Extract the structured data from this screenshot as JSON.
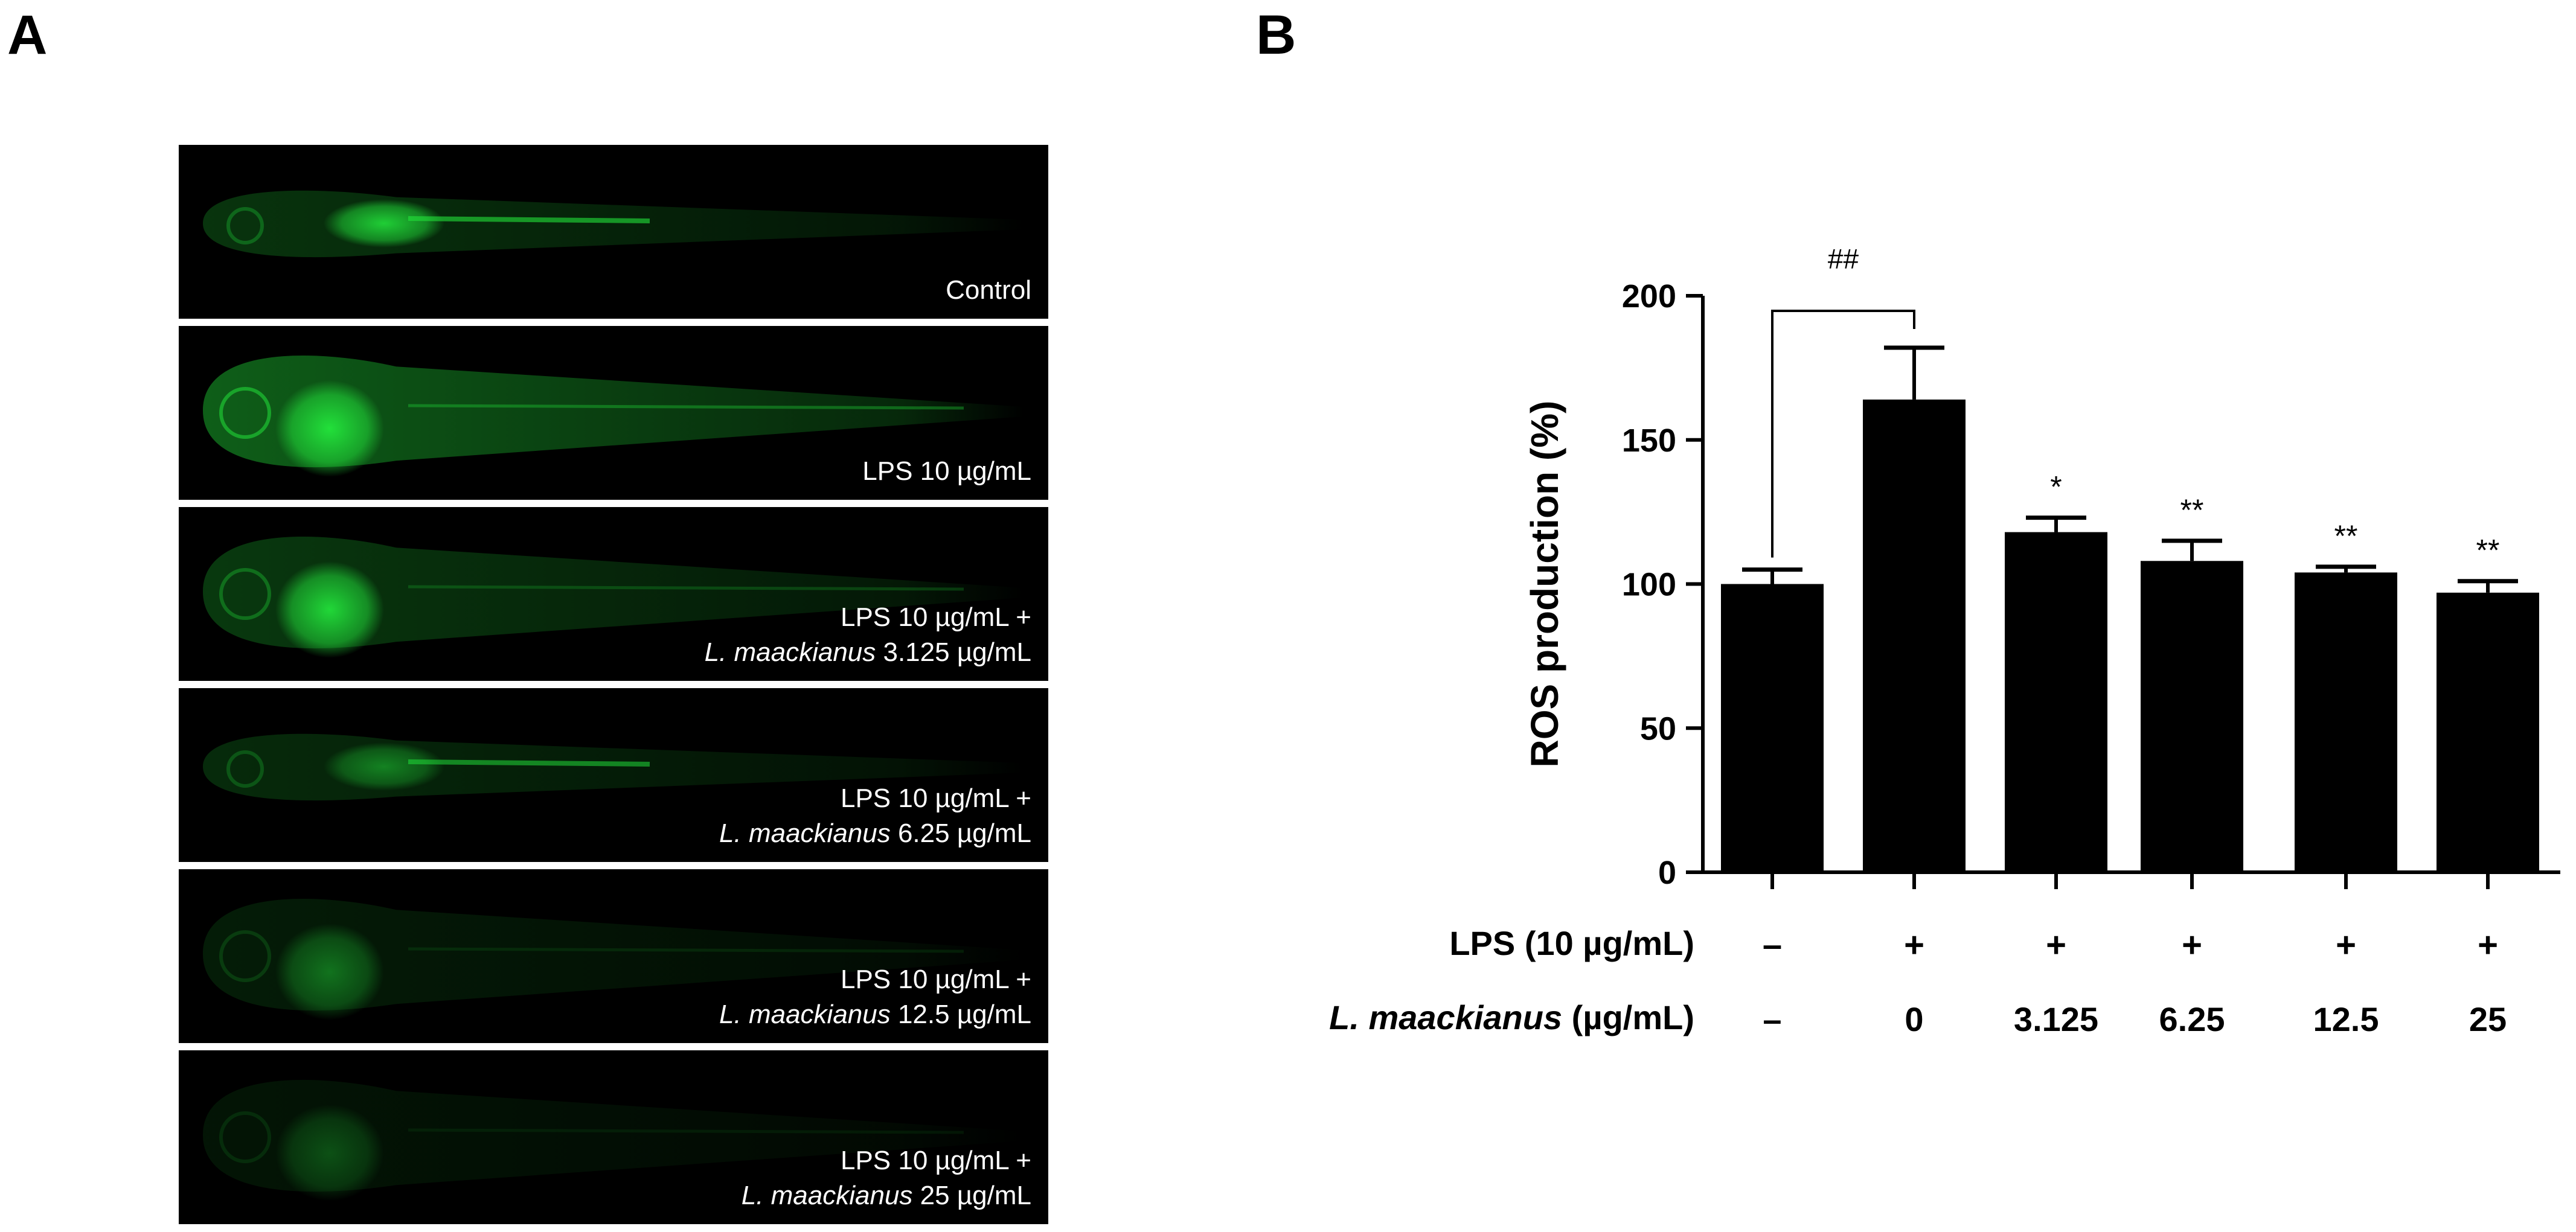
{
  "panel_a": {
    "letter": "A",
    "images": [
      {
        "line1": "Control",
        "italic": "",
        "line2": "",
        "brightness": 0.55,
        "yolk_glow": 0.9
      },
      {
        "line1": "LPS  10 µg/mL",
        "italic": "",
        "line2": "",
        "brightness": 1.0,
        "yolk_glow": 1.0
      },
      {
        "line1": "LPS  10 µg/mL  +",
        "italic": "L. maackianus",
        "line2": " 3.125  µg/mL",
        "brightness": 0.6,
        "yolk_glow": 0.95
      },
      {
        "line1": "LPS  10 µg/mL  +",
        "italic": "L. maackianus",
        "line2": " 6.25  µg/mL",
        "brightness": 0.45,
        "yolk_glow": 0.5
      },
      {
        "line1": "LPS  10 µg/mL  +",
        "italic": "L. maackianus",
        "line2": " 12.5  µg/mL",
        "brightness": 0.3,
        "yolk_glow": 0.45
      },
      {
        "line1": "LPS  10 µg/mL  +",
        "italic": "L. maackianus",
        "line2": " 25  µg/mL",
        "brightness": 0.22,
        "yolk_glow": 0.3
      }
    ],
    "fluorescence_color": "#22e03a"
  },
  "panel_b": {
    "letter": "B",
    "row_labels": {
      "lps": "LPS (10 µg/mL)",
      "lm_italic": "L. maackianus",
      "lm_rest": " (µg/mL)"
    }
  },
  "chart_data": {
    "type": "bar",
    "ylabel": "ROS production (%)",
    "ylim": [
      0,
      200
    ],
    "yticks": [
      0,
      50,
      100,
      150,
      200
    ],
    "categories": [
      "Control",
      "LPS",
      "LPS + 3.125",
      "LPS + 6.25",
      "LPS + 12.5",
      "LPS + 25"
    ],
    "values": [
      100,
      164,
      118,
      108,
      104,
      97
    ],
    "errors": [
      5,
      18,
      5,
      7,
      2,
      4
    ],
    "significance": [
      "",
      "",
      "*",
      "**",
      "**",
      "**"
    ],
    "lps_row": [
      "–",
      "+",
      "+",
      "+",
      "+",
      "+"
    ],
    "lm_row": [
      "–",
      "0",
      "3.125",
      "6.25",
      "12.5",
      "25"
    ],
    "bracket": {
      "from": 0,
      "to": 1,
      "label": "##"
    },
    "bar_color": "#000000",
    "grid": false
  }
}
